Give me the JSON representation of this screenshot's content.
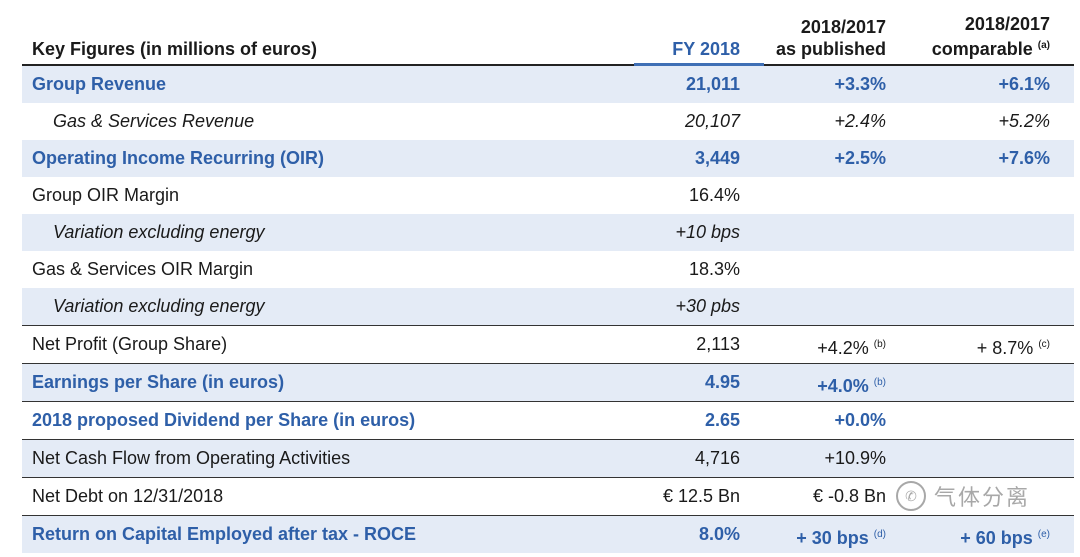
{
  "header": {
    "label": "Key Figures (in millions of euros)",
    "fy": "FY 2018",
    "published_line1": "2018/2017",
    "published_line2": "as published",
    "comparable_line1": "2018/2017",
    "comparable_line2": "comparable",
    "comparable_note": "(a)"
  },
  "rows": [
    {
      "label": "Group Revenue",
      "fy": "21,011",
      "pub": "+3.3%",
      "pub_note": "",
      "comp": "+6.1%",
      "comp_note": ""
    },
    {
      "label": "Gas & Services Revenue",
      "fy": "20,107",
      "pub": "+2.4%",
      "pub_note": "",
      "comp": "+5.2%",
      "comp_note": ""
    },
    {
      "label": "Operating Income Recurring (OIR)",
      "fy": "3,449",
      "pub": "+2.5%",
      "pub_note": "",
      "comp": "+7.6%",
      "comp_note": ""
    },
    {
      "label": "Group OIR Margin",
      "fy": "16.4%",
      "pub": "",
      "pub_note": "",
      "comp": "",
      "comp_note": ""
    },
    {
      "label": "Variation excluding energy",
      "fy": "+10 bps",
      "pub": "",
      "pub_note": "",
      "comp": "",
      "comp_note": ""
    },
    {
      "label": "Gas & Services OIR Margin",
      "fy": "18.3%",
      "pub": "",
      "pub_note": "",
      "comp": "",
      "comp_note": ""
    },
    {
      "label": "Variation excluding energy",
      "fy": "+30 pbs",
      "pub": "",
      "pub_note": "",
      "comp": "",
      "comp_note": ""
    },
    {
      "label": "Net Profit (Group Share)",
      "fy": "2,113",
      "pub": "+4.2%",
      "pub_note": "(b)",
      "comp": "+ 8.7%",
      "comp_note": "(c)"
    },
    {
      "label": "Earnings per Share (in euros)",
      "fy": "4.95",
      "pub": "+4.0%",
      "pub_note": "(b)",
      "comp": "",
      "comp_note": ""
    },
    {
      "label": "2018 proposed Dividend per Share (in euros)",
      "fy": "2.65",
      "pub": "+0.0%",
      "pub_note": "",
      "comp": "",
      "comp_note": ""
    },
    {
      "label": "Net Cash Flow from Operating Activities",
      "fy": "4,716",
      "pub": "+10.9%",
      "pub_note": "",
      "comp": "",
      "comp_note": ""
    },
    {
      "label": "Net Debt on 12/31/2018",
      "fy": "€ 12.5 Bn",
      "pub": "€ -0.8 Bn",
      "pub_note": "",
      "comp": "",
      "comp_note": ""
    },
    {
      "label": "Return on Capital Employed after tax - ROCE",
      "fy": "8.0%",
      "pub": "+ 30 bps",
      "pub_note": "(d)",
      "comp": "+ 60 bps",
      "comp_note": "(e)"
    }
  ],
  "watermark": {
    "text": "气体分离",
    "icon": "wechat-icon"
  },
  "colors": {
    "accent_blue": "#2e5fa8",
    "band": "#e4ebf6"
  }
}
